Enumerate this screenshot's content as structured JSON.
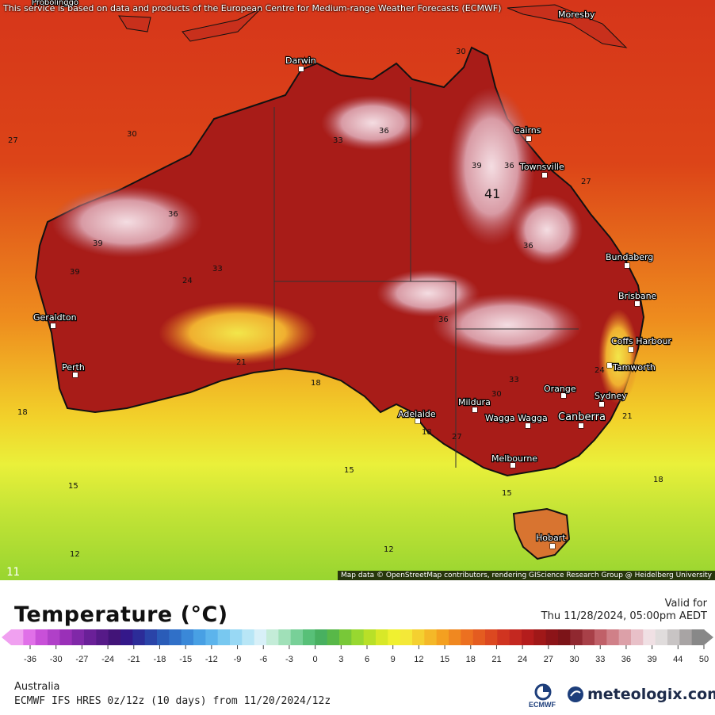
{
  "map": {
    "notice": "This service is based on data and products of the European Centre for Medium-range Weather Forecasts (ECMWF)",
    "credits": "Map data © OpenStreetMap contributors, rendering GIScience Research Group @ Heidelberg University",
    "frame_index": "11",
    "cities": [
      {
        "name": "Darwin"
      },
      {
        "name": "Cairns"
      },
      {
        "name": "Townsville"
      },
      {
        "name": "Bundaberg"
      },
      {
        "name": "Brisbane"
      },
      {
        "name": "Coffs Harbour"
      },
      {
        "name": "Tamworth"
      },
      {
        "name": "Orange"
      },
      {
        "name": "Sydney"
      },
      {
        "name": "Canberra"
      },
      {
        "name": "Wagga Wagga"
      },
      {
        "name": "Mildura"
      },
      {
        "name": "Adelaide"
      },
      {
        "name": "Melbourne"
      },
      {
        "name": "Hobart"
      },
      {
        "name": "Geraldton"
      },
      {
        "name": "Perth"
      },
      {
        "name": "Moresby"
      },
      {
        "name": "Probolinggo"
      }
    ],
    "contour_labels": [
      "30",
      "27",
      "33",
      "36",
      "39",
      "41",
      "36",
      "39",
      "36",
      "30",
      "33",
      "36",
      "24",
      "21",
      "18",
      "15",
      "12",
      "27",
      "18",
      "15",
      "12",
      "18",
      "21",
      "24",
      "27",
      "30",
      "33",
      "36",
      "39",
      "15",
      "18"
    ]
  },
  "legend": {
    "title": "Temperature (°C)",
    "valid_label": "Valid for",
    "valid_time": "Thu 11/28/2024, 05:00pm AEDT",
    "region": "Australia",
    "model": "ECMWF IFS HRES 0z/12z (10 days) from  11/20/2024/12z",
    "ticks": [
      "-36",
      "-30",
      "-27",
      "-24",
      "-21",
      "-18",
      "-15",
      "-12",
      "-9",
      "-6",
      "-3",
      "0",
      "3",
      "6",
      "9",
      "12",
      "15",
      "18",
      "21",
      "24",
      "27",
      "30",
      "33",
      "36",
      "39",
      "44",
      "50"
    ],
    "colors": [
      "#f0a0f0",
      "#e070e8",
      "#c850d8",
      "#b040c8",
      "#9a30b8",
      "#8028a8",
      "#6a2098",
      "#561a88",
      "#421478",
      "#34188a",
      "#2c2c98",
      "#2a44a8",
      "#2a5cb8",
      "#3070c8",
      "#3a88d8",
      "#48a0e4",
      "#5cb4ec",
      "#78c8f0",
      "#98d8f4",
      "#b8e6f6",
      "#d8f0f8",
      "#c4ecd8",
      "#a0e0b8",
      "#78d098",
      "#58c078",
      "#48b060",
      "#58b848",
      "#78c838",
      "#98d830",
      "#b8e028",
      "#d8e828",
      "#f0f030",
      "#f4e838",
      "#f4d030",
      "#f4b828",
      "#f4a020",
      "#f08820",
      "#ec7020",
      "#e45c20",
      "#dc4820",
      "#d03420",
      "#c42820",
      "#b41c1c",
      "#a01818",
      "#8c1418",
      "#7c1418",
      "#902830",
      "#a84048",
      "#c06068",
      "#d08088",
      "#dca0a8",
      "#e8c0c8",
      "#f0e0e4",
      "#e0dcdc",
      "#c8c4c4",
      "#a8a4a4",
      "#888888"
    ],
    "brand": "meteologix.com",
    "ecmwf_logo_text": "ECMWF"
  }
}
